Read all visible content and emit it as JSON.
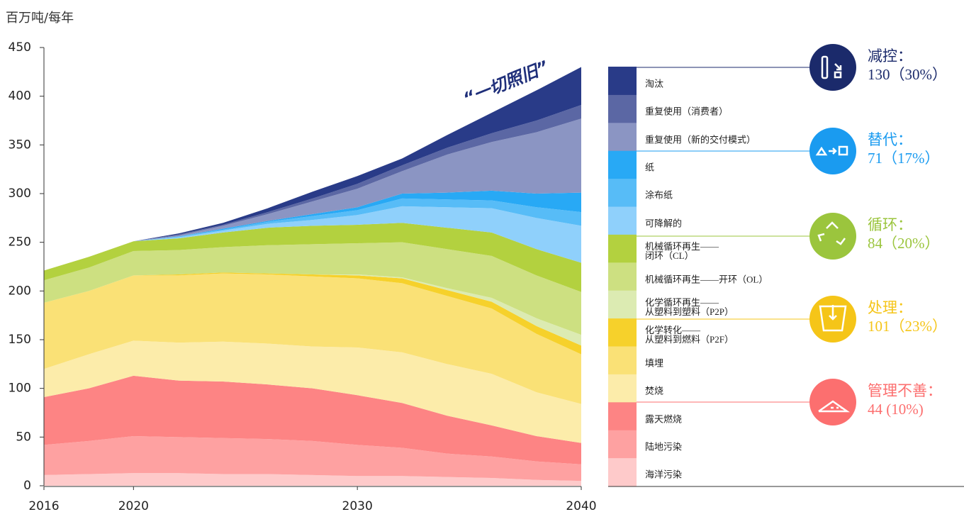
{
  "chart_data": {
    "type": "stacked_area",
    "y_label": "百万吨/每年",
    "annotation": "“一切照旧”",
    "x": [
      2016,
      2018,
      2020,
      2022,
      2024,
      2026,
      2028,
      2030,
      2032,
      2034,
      2036,
      2038,
      2040
    ],
    "xlim": [
      2016,
      2040
    ],
    "xticks": [
      2016,
      2020,
      2030,
      2040
    ],
    "ylim": [
      0,
      450
    ],
    "yticks": [
      0,
      50,
      100,
      150,
      200,
      250,
      300,
      350,
      400,
      450
    ],
    "series": [
      {
        "name": "海洋污染",
        "color": "#fecaca",
        "values": [
          11,
          12,
          13,
          13,
          12,
          12,
          11,
          10,
          10,
          9,
          8,
          6,
          5
        ]
      },
      {
        "name": "陆地污染",
        "color": "#fea1a1",
        "values": [
          31,
          34,
          38,
          37,
          37,
          36,
          35,
          32,
          29,
          24,
          22,
          19,
          17
        ]
      },
      {
        "name": "露天燃烧",
        "color": "#fd8484",
        "values": [
          49,
          54,
          62,
          58,
          58,
          56,
          54,
          51,
          46,
          39,
          32,
          26,
          22
        ]
      },
      {
        "name": "焚烧",
        "color": "#fcecaa",
        "values": [
          29,
          35,
          36,
          39,
          41,
          42,
          43,
          49,
          52,
          53,
          53,
          45,
          40
        ]
      },
      {
        "name": "填埋",
        "color": "#fae176",
        "values": [
          68,
          65,
          67,
          69,
          70,
          71,
          72,
          71,
          71,
          70,
          67,
          60,
          51
        ]
      },
      {
        "name": "化学转化——\n从塑料到燃料（P2F）",
        "color": "#f6d12b",
        "values": [
          0,
          0,
          0,
          1,
          1,
          1,
          2,
          3,
          5,
          6,
          7,
          8,
          9
        ]
      },
      {
        "name": "化学循环再生——\n从塑料到塑料（P2P）",
        "color": "#dcebb2",
        "values": [
          0,
          0,
          0,
          0,
          0,
          0,
          0,
          1,
          1,
          2,
          4,
          8,
          11
        ]
      },
      {
        "name": "机械循环再生——开环（OL）",
        "color": "#cde081",
        "values": [
          23,
          24,
          25,
          25,
          26,
          29,
          31,
          32,
          36,
          40,
          43,
          44,
          44
        ]
      },
      {
        "name": "机械循环再生——\n闭环（CL）",
        "color": "#b3d13f",
        "values": [
          10,
          11,
          10,
          12,
          15,
          18,
          19,
          19,
          20,
          22,
          24,
          27,
          30
        ]
      },
      {
        "name": "可降解的",
        "color": "#8fd0fb",
        "values": [
          0,
          0,
          0,
          1,
          2,
          4,
          6,
          10,
          17,
          21,
          25,
          32,
          38
        ]
      },
      {
        "name": "涂布纸",
        "color": "#57bcf7",
        "values": [
          0,
          0,
          0,
          1,
          1,
          2,
          4,
          5,
          8,
          8,
          8,
          11,
          14
        ]
      },
      {
        "name": "纸",
        "color": "#28a9f5",
        "values": [
          0,
          0,
          0,
          0,
          1,
          1,
          2,
          3,
          5,
          7,
          10,
          14,
          20
        ]
      },
      {
        "name": "重复使用（新的交付模式）",
        "color": "#8b95c3",
        "values": [
          0,
          0,
          0,
          1,
          3,
          7,
          13,
          19,
          23,
          39,
          50,
          63,
          76
        ]
      },
      {
        "name": "重复使用（消费者）",
        "color": "#5b67a4",
        "values": [
          0,
          0,
          0,
          1,
          1,
          2,
          3,
          5,
          6,
          7,
          9,
          12,
          14
        ]
      },
      {
        "name": "淘汰",
        "color": "#293b88",
        "values": [
          0,
          0,
          0,
          1,
          2,
          4,
          7,
          8,
          7,
          13,
          21,
          31,
          39
        ]
      }
    ],
    "groups": [
      {
        "label": "减控：",
        "value_label": "130（30%）",
        "color": "#1b2a6b"
      },
      {
        "label": "替代：",
        "value_label": "71（17%）",
        "color": "#1a9bf0"
      },
      {
        "label": "循环：",
        "value_label": "84（20%）",
        "color": "#9bc53d"
      },
      {
        "label": "处理：",
        "value_label": "101（23%）",
        "color": "#f5c518"
      },
      {
        "label": "管理不善：",
        "value_label": "44 (10%)",
        "color": "#fc6f6f"
      }
    ]
  }
}
